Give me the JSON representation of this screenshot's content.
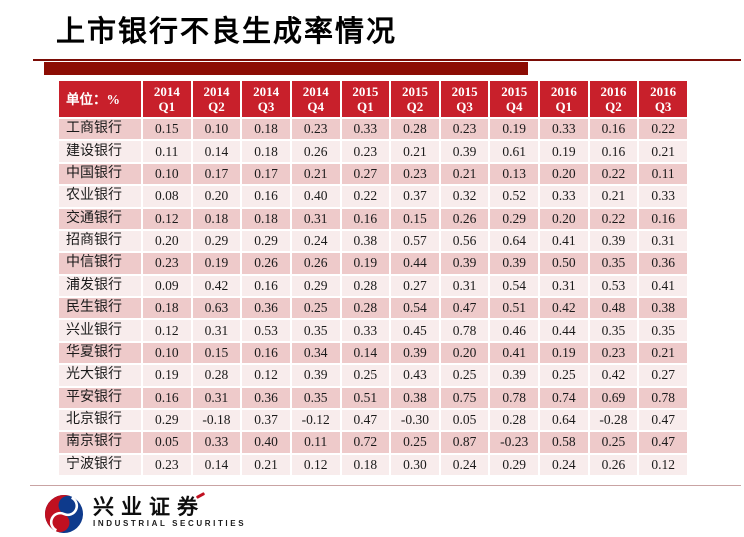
{
  "title": "上市银行不良生成率情况",
  "table": {
    "unit_label": "单位：%",
    "columns": [
      {
        "year": "2014",
        "quarter": "Q1"
      },
      {
        "year": "2014",
        "quarter": "Q2"
      },
      {
        "year": "2014",
        "quarter": "Q3"
      },
      {
        "year": "2014",
        "quarter": "Q4"
      },
      {
        "year": "2015",
        "quarter": "Q1"
      },
      {
        "year": "2015",
        "quarter": "Q2"
      },
      {
        "year": "2015",
        "quarter": "Q3"
      },
      {
        "year": "2015",
        "quarter": "Q4"
      },
      {
        "year": "2016",
        "quarter": "Q1"
      },
      {
        "year": "2016",
        "quarter": "Q2"
      },
      {
        "year": "2016",
        "quarter": "Q3"
      }
    ],
    "rows": [
      {
        "bank": "工商银行",
        "values": [
          "0.15",
          "0.10",
          "0.18",
          "0.23",
          "0.33",
          "0.28",
          "0.23",
          "0.19",
          "0.33",
          "0.16",
          "0.22"
        ]
      },
      {
        "bank": "建设银行",
        "values": [
          "0.11",
          "0.14",
          "0.18",
          "0.26",
          "0.23",
          "0.21",
          "0.39",
          "0.61",
          "0.19",
          "0.16",
          "0.21"
        ]
      },
      {
        "bank": "中国银行",
        "values": [
          "0.10",
          "0.17",
          "0.17",
          "0.21",
          "0.27",
          "0.23",
          "0.21",
          "0.13",
          "0.20",
          "0.22",
          "0.11"
        ]
      },
      {
        "bank": "农业银行",
        "values": [
          "0.08",
          "0.20",
          "0.16",
          "0.40",
          "0.22",
          "0.37",
          "0.32",
          "0.52",
          "0.33",
          "0.21",
          "0.33"
        ]
      },
      {
        "bank": "交通银行",
        "values": [
          "0.12",
          "0.18",
          "0.18",
          "0.31",
          "0.16",
          "0.15",
          "0.26",
          "0.29",
          "0.20",
          "0.22",
          "0.16"
        ]
      },
      {
        "bank": "招商银行",
        "values": [
          "0.20",
          "0.29",
          "0.29",
          "0.24",
          "0.38",
          "0.57",
          "0.56",
          "0.64",
          "0.41",
          "0.39",
          "0.31"
        ]
      },
      {
        "bank": "中信银行",
        "values": [
          "0.23",
          "0.19",
          "0.26",
          "0.26",
          "0.19",
          "0.44",
          "0.39",
          "0.39",
          "0.50",
          "0.35",
          "0.36"
        ]
      },
      {
        "bank": "浦发银行",
        "values": [
          "0.09",
          "0.42",
          "0.16",
          "0.29",
          "0.28",
          "0.27",
          "0.31",
          "0.54",
          "0.31",
          "0.53",
          "0.41"
        ]
      },
      {
        "bank": "民生银行",
        "values": [
          "0.18",
          "0.63",
          "0.36",
          "0.25",
          "0.28",
          "0.54",
          "0.47",
          "0.51",
          "0.42",
          "0.48",
          "0.38"
        ]
      },
      {
        "bank": "兴业银行",
        "values": [
          "0.12",
          "0.31",
          "0.53",
          "0.35",
          "0.33",
          "0.45",
          "0.78",
          "0.46",
          "0.44",
          "0.35",
          "0.35"
        ]
      },
      {
        "bank": "华夏银行",
        "values": [
          "0.10",
          "0.15",
          "0.16",
          "0.34",
          "0.14",
          "0.39",
          "0.20",
          "0.41",
          "0.19",
          "0.23",
          "0.21"
        ]
      },
      {
        "bank": "光大银行",
        "values": [
          "0.19",
          "0.28",
          "0.12",
          "0.39",
          "0.25",
          "0.43",
          "0.25",
          "0.39",
          "0.25",
          "0.42",
          "0.27"
        ]
      },
      {
        "bank": "平安银行",
        "values": [
          "0.16",
          "0.31",
          "0.36",
          "0.35",
          "0.51",
          "0.38",
          "0.75",
          "0.78",
          "0.74",
          "0.69",
          "0.78"
        ]
      },
      {
        "bank": "北京银行",
        "values": [
          "0.29",
          "-0.18",
          "0.37",
          "-0.12",
          "0.47",
          "-0.30",
          "0.05",
          "0.28",
          "0.64",
          "-0.28",
          "0.47"
        ]
      },
      {
        "bank": "南京银行",
        "values": [
          "0.05",
          "0.33",
          "0.40",
          "0.11",
          "0.72",
          "0.25",
          "0.87",
          "-0.23",
          "0.58",
          "0.25",
          "0.47"
        ]
      },
      {
        "bank": "宁波银行",
        "values": [
          "0.23",
          "0.14",
          "0.21",
          "0.12",
          "0.18",
          "0.30",
          "0.24",
          "0.29",
          "0.24",
          "0.26",
          "0.12"
        ]
      }
    ]
  },
  "footer": {
    "brand_cn": "兴业证券",
    "brand_en": "INDUSTRIAL SECURITIES"
  },
  "colors": {
    "header_bg": "#c8202b",
    "row_odd": "#eecaca",
    "row_even": "#f8ecec",
    "title_bar": "#8c0d04",
    "line_thin": "#7a0c06",
    "footer_line": "#c9a3a3",
    "logo_blue": "#0e3a8c",
    "logo_red": "#c01020"
  }
}
